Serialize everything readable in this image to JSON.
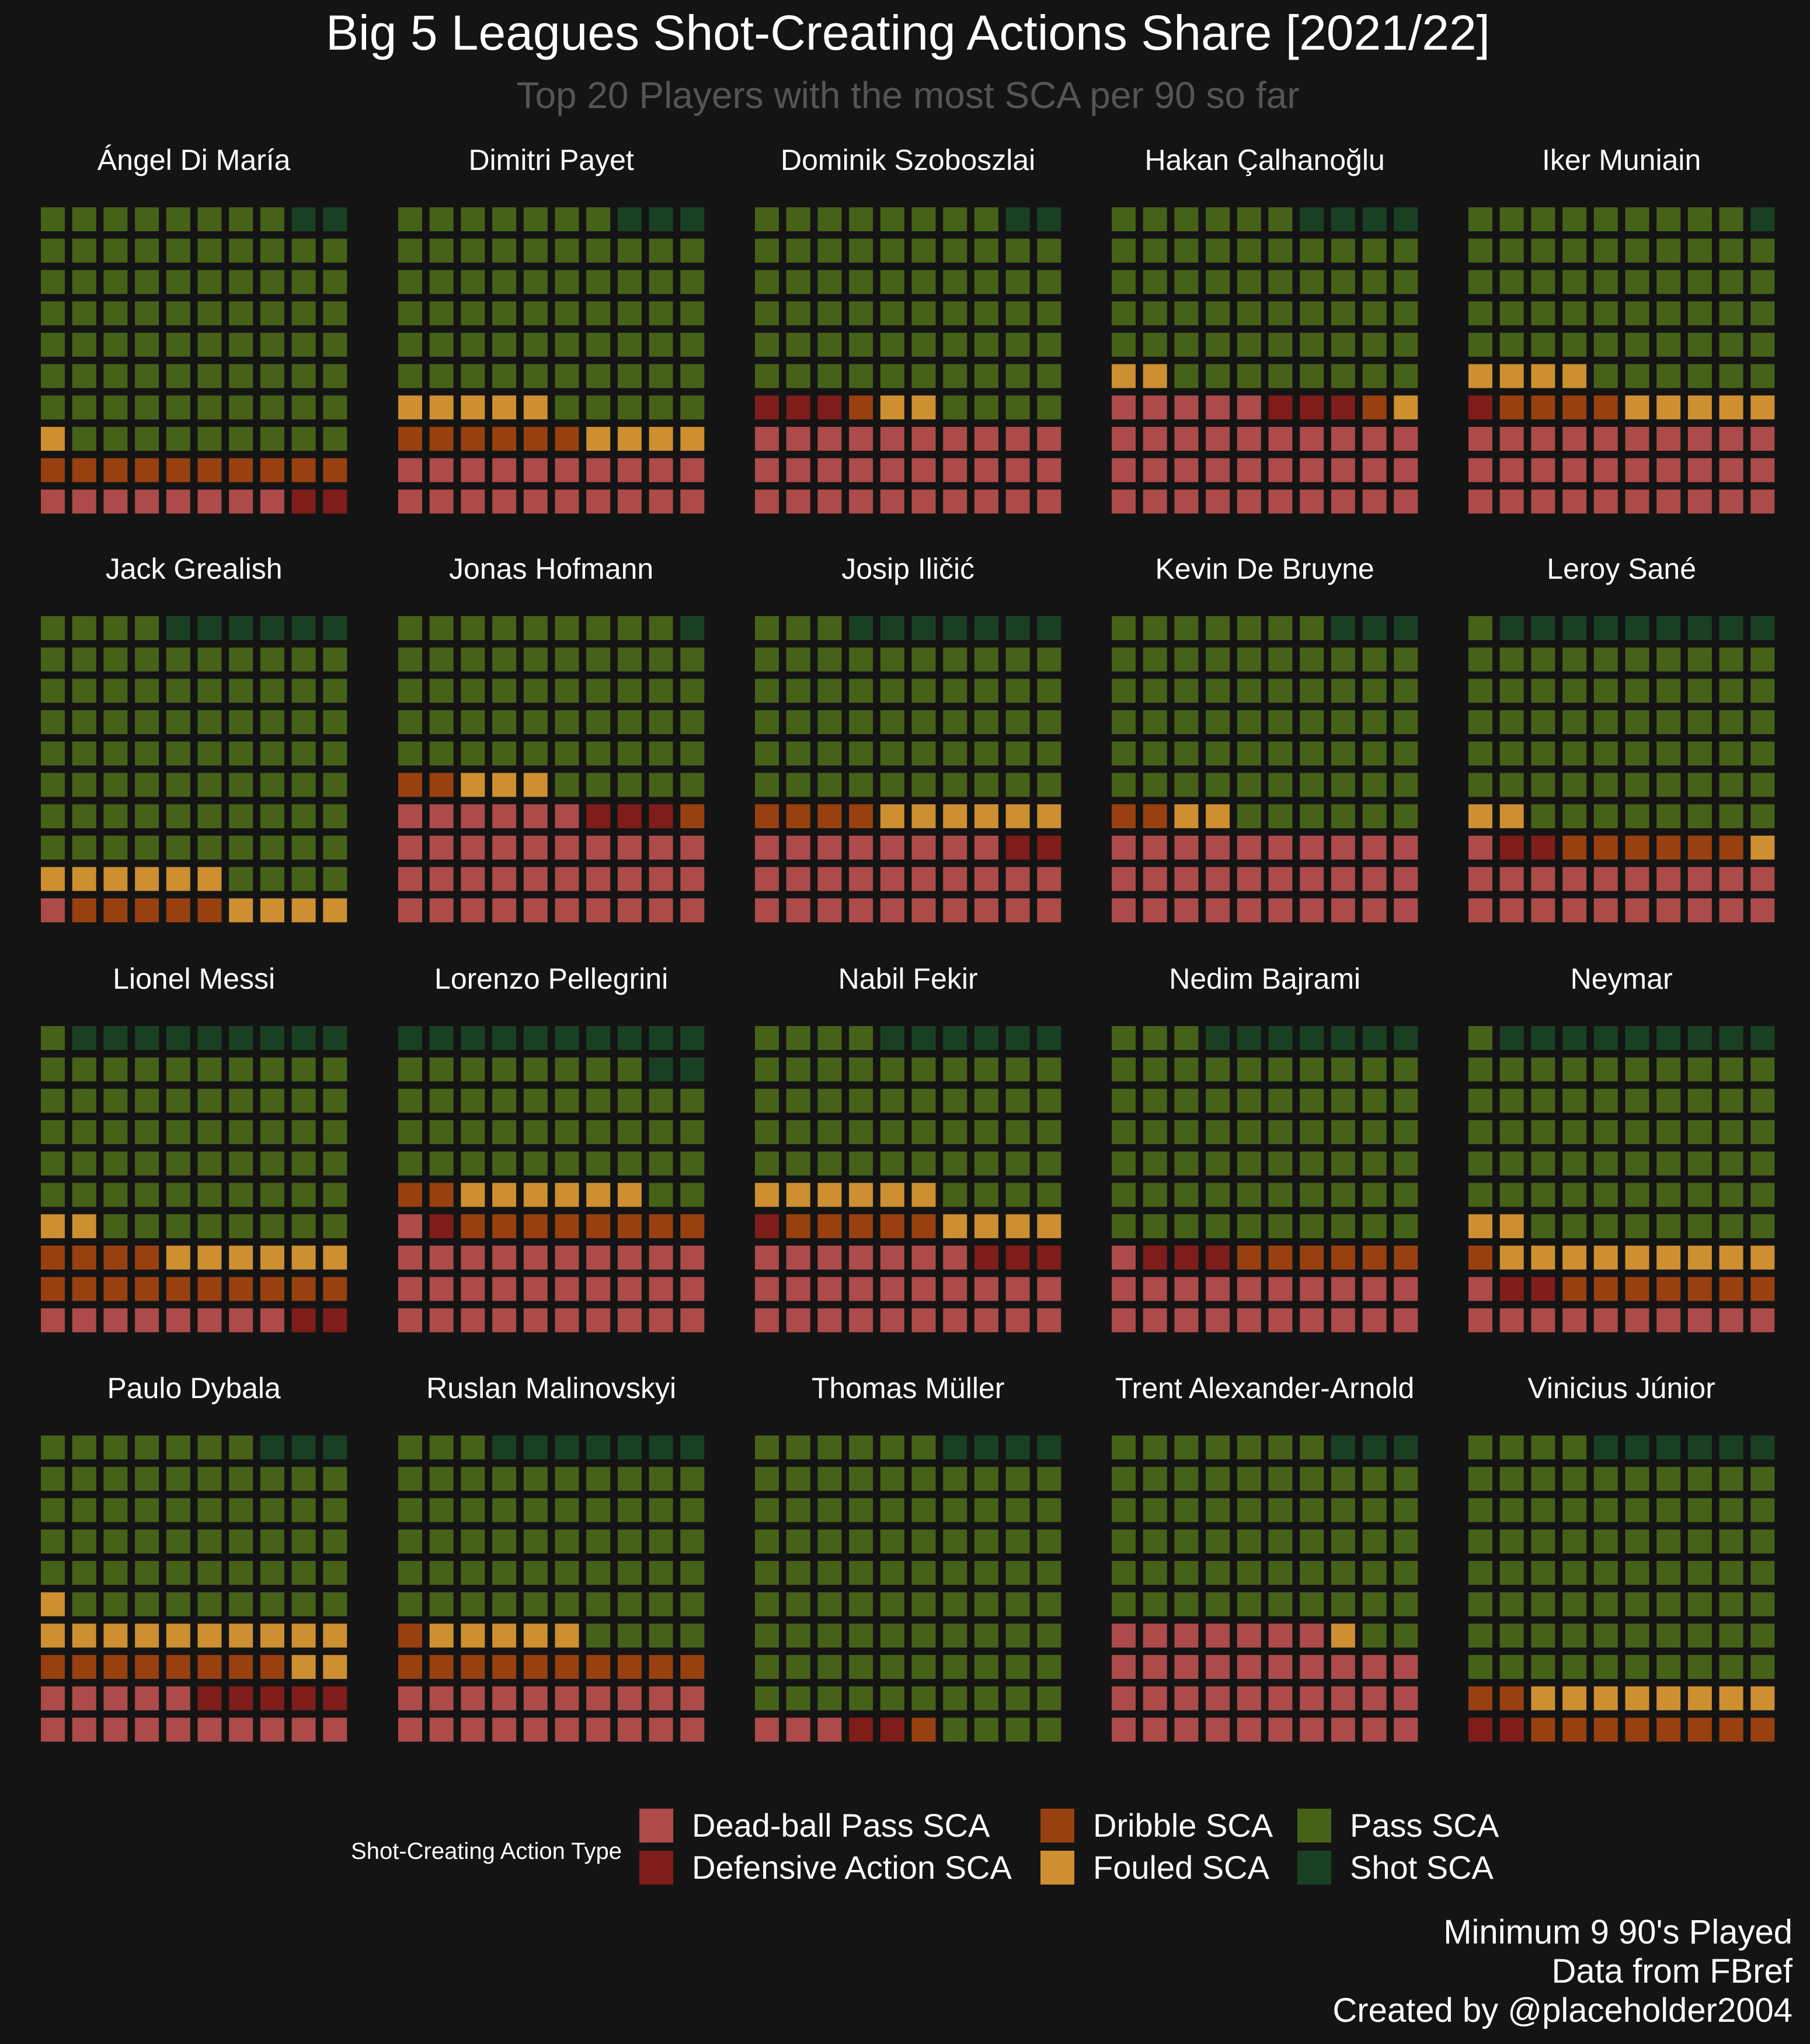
{
  "chart_data": {
    "type": "waffle",
    "title": "Big 5 Leagues Shot-Creating Actions Share [2021/22]",
    "subtitle": "Top 20 Players with the most SCA per 90 so far",
    "unit": "squares out of 100",
    "legend_title": "Shot-Creating Action Type",
    "legend_position": "bottom",
    "categories": [
      {
        "name": "Dead-ball Pass SCA",
        "color": "#ad4a4a"
      },
      {
        "name": "Defensive Action SCA",
        "color": "#7f1d1a"
      },
      {
        "name": "Dribble SCA",
        "color": "#98400f"
      },
      {
        "name": "Fouled SCA",
        "color": "#cd8f30"
      },
      {
        "name": "Pass SCA",
        "color": "#466218"
      },
      {
        "name": "Shot SCA",
        "color": "#1a4024"
      }
    ],
    "players": [
      {
        "name": "Ángel Di María",
        "values": [
          8,
          2,
          10,
          1,
          77,
          2
        ]
      },
      {
        "name": "Dimitri Payet",
        "values": [
          20,
          0,
          6,
          9,
          62,
          3
        ]
      },
      {
        "name": "Dominik Szoboszlai",
        "values": [
          30,
          3,
          1,
          2,
          62,
          2
        ]
      },
      {
        "name": "Hakan Çalhanoğlu",
        "values": [
          35,
          3,
          1,
          3,
          54,
          4
        ]
      },
      {
        "name": "Iker Muniain",
        "values": [
          30,
          1,
          4,
          9,
          55,
          1
        ]
      },
      {
        "name": "Jack Grealish",
        "values": [
          1,
          0,
          5,
          10,
          78,
          6
        ]
      },
      {
        "name": "Jonas Hofmann",
        "values": [
          36,
          3,
          3,
          3,
          54,
          1
        ]
      },
      {
        "name": "Josip Iličić",
        "values": [
          28,
          2,
          4,
          6,
          53,
          7
        ]
      },
      {
        "name": "Kevin De Bruyne",
        "values": [
          30,
          0,
          2,
          2,
          63,
          3
        ]
      },
      {
        "name": "Leroy Sané",
        "values": [
          21,
          2,
          6,
          3,
          59,
          9
        ]
      },
      {
        "name": "Lionel Messi",
        "values": [
          8,
          2,
          14,
          8,
          59,
          9
        ]
      },
      {
        "name": "Lorenzo Pellegrini",
        "values": [
          31,
          1,
          10,
          6,
          40,
          12
        ]
      },
      {
        "name": "Nabil Fekir",
        "values": [
          27,
          4,
          5,
          10,
          48,
          6
        ]
      },
      {
        "name": "Nedim Bajrami",
        "values": [
          21,
          3,
          6,
          0,
          63,
          7
        ]
      },
      {
        "name": "Neymar",
        "values": [
          11,
          2,
          8,
          11,
          59,
          9
        ]
      },
      {
        "name": "Paulo Dybala",
        "values": [
          15,
          5,
          8,
          13,
          56,
          3
        ]
      },
      {
        "name": "Ruslan Malinovskyi",
        "values": [
          20,
          0,
          11,
          5,
          57,
          7
        ]
      },
      {
        "name": "Thomas Müller",
        "values": [
          3,
          2,
          1,
          0,
          90,
          4
        ]
      },
      {
        "name": "Trent Alexander-Arnold",
        "values": [
          37,
          0,
          0,
          1,
          59,
          3
        ]
      },
      {
        "name": "Vinicius Júnior",
        "values": [
          0,
          2,
          10,
          8,
          74,
          6
        ]
      }
    ]
  },
  "caption": [
    "Minimum 9 90's Played",
    "Data from FBref",
    "Created by @placeholder2004"
  ]
}
